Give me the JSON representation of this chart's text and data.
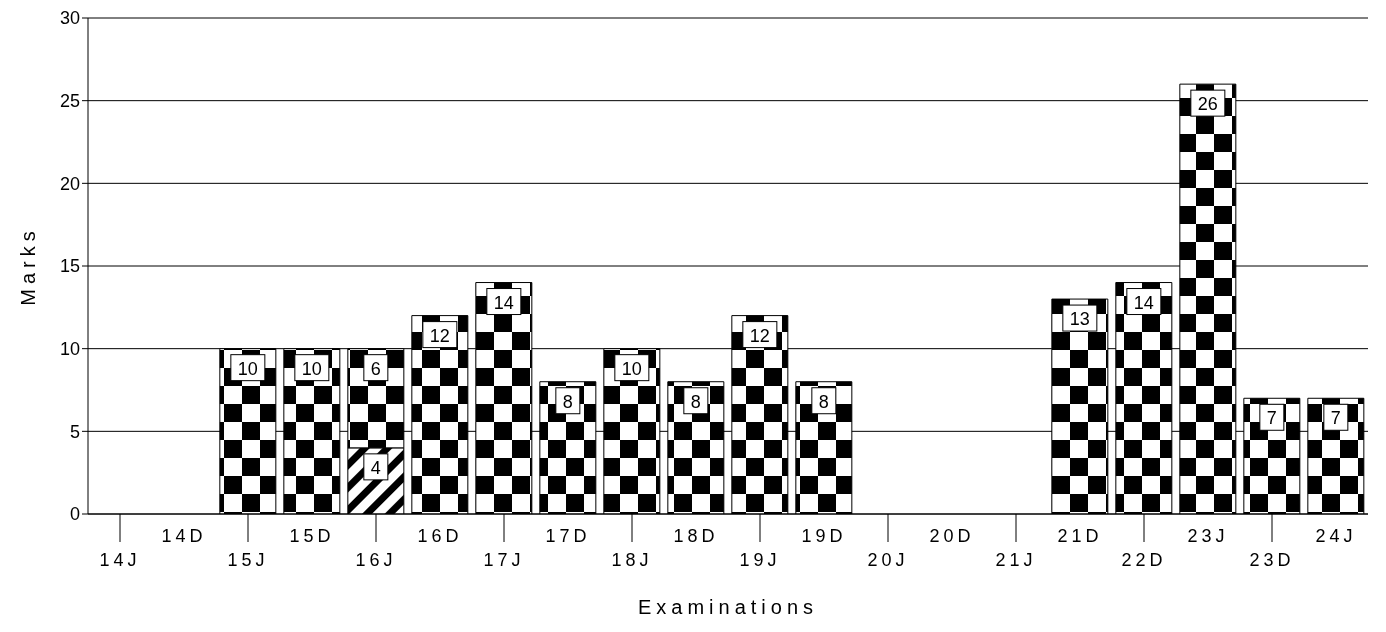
{
  "chart_data": {
    "type": "bar",
    "xlabel": "Examinations",
    "ylabel": "Marks",
    "categories": [
      "14J",
      "14D",
      "15J",
      "15D",
      "16J",
      "16D",
      "17J",
      "17D",
      "18J",
      "18D",
      "19J",
      "19D",
      "20J",
      "20D",
      "21J",
      "21D",
      "22D",
      "23J",
      "23D",
      "24J"
    ],
    "stacked": true,
    "series": [
      {
        "color": "#000000",
        "values": [
          null,
          null,
          null,
          null,
          4,
          null,
          null,
          null,
          null,
          null,
          null,
          null,
          null,
          null,
          null,
          null,
          null,
          null,
          null,
          null
        ]
      },
      {
        "color": "#000000",
        "values": [
          null,
          null,
          10,
          10,
          6,
          12,
          14,
          8,
          10,
          8,
          12,
          8,
          null,
          null,
          null,
          13,
          14,
          26,
          7,
          7
        ]
      }
    ],
    "ylim": [
      0,
      30
    ],
    "yticks": [
      0,
      5,
      10,
      15,
      20,
      25,
      30
    ],
    "grid": "y",
    "data_labels": true,
    "legend": false
  }
}
